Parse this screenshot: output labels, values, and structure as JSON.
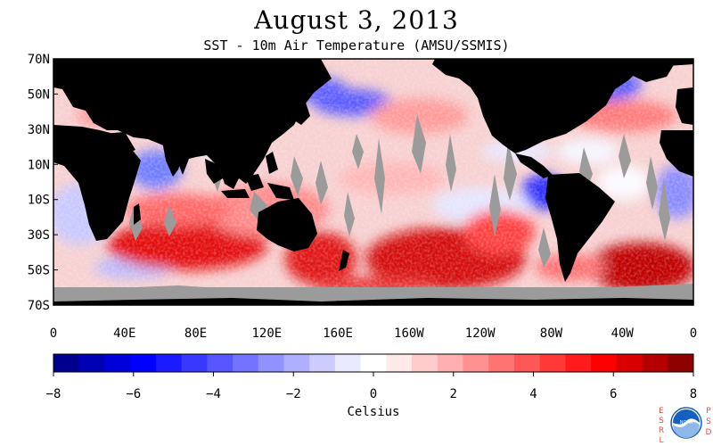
{
  "title": "August 3, 2013",
  "subtitle": "SST - 10m Air Temperature (AMSU/SSMIS)",
  "map": {
    "lat_labels": [
      "70N",
      "50N",
      "30N",
      "10N",
      "10S",
      "30S",
      "50S",
      "70S"
    ],
    "lat_values": [
      70,
      50,
      30,
      10,
      -10,
      -30,
      -50,
      -70
    ],
    "lon_labels": [
      "0",
      "40E",
      "80E",
      "120E",
      "160E",
      "160W",
      "120W",
      "80W",
      "40W",
      "0"
    ],
    "lon_values": [
      0,
      40,
      80,
      120,
      160,
      200,
      240,
      280,
      320,
      360
    ],
    "colors": {
      "land": "#000000",
      "missing": "#9b9b9b",
      "frame": "#000000"
    }
  },
  "colorbar": {
    "title": "Celsius",
    "tick_labels": [
      "−8",
      "−6",
      "−4",
      "−2",
      "0",
      "2",
      "4",
      "6",
      "8"
    ],
    "tick_values": [
      -8,
      -6,
      -4,
      -2,
      0,
      2,
      4,
      6,
      8
    ],
    "min": -8,
    "max": 8,
    "colors": [
      "#00008f",
      "#0000b4",
      "#0000d8",
      "#0000ff",
      "#1b1bff",
      "#3838ff",
      "#5656ff",
      "#7373ff",
      "#9191ff",
      "#afafff",
      "#ccccff",
      "#eaeaff",
      "#ffffff",
      "#ffeaea",
      "#ffcccc",
      "#ffafaf",
      "#ff9191",
      "#ff7373",
      "#ff5656",
      "#ff3838",
      "#ff1b1b",
      "#ff0000",
      "#d80000",
      "#b40000",
      "#8f0000"
    ]
  },
  "logo": {
    "left_letters": "ESRL",
    "right_letters": "PSD",
    "seal_text": "NOAA",
    "colors": {
      "letters": "#e05050",
      "seal_blue": "#1560bd",
      "seal_light": "#8fb7e8"
    }
  }
}
